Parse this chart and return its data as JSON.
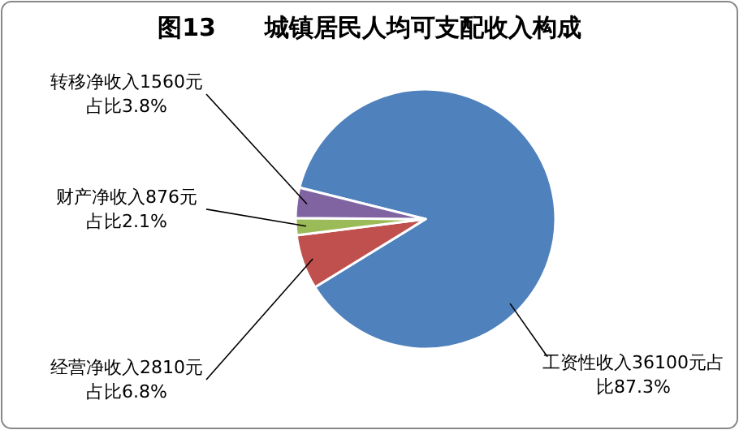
{
  "chart_data": {
    "type": "pie",
    "title": "图13　　城镇居民人均可支配收入构成",
    "categories": [
      "工资性收入",
      "经营净收入",
      "财产净收入",
      "转移净收入"
    ],
    "values": [
      36100,
      2810,
      876,
      1560
    ],
    "value_labels": [
      "36100元占比87.3%",
      "2810元占比6.8%",
      "876元占比2.1%",
      "1560元占比3.8%"
    ],
    "colors": [
      "#4f81bd",
      "#c0504d",
      "#9bbb59",
      "#8064a2"
    ]
  }
}
